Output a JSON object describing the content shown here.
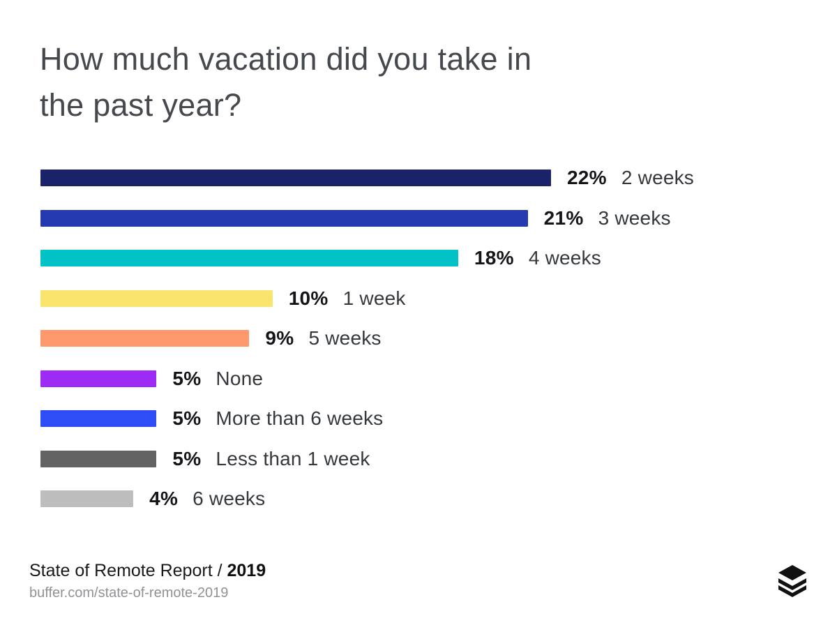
{
  "title": {
    "line1": "How much vacation did you take in",
    "line2": "the past year?"
  },
  "chart_data": {
    "type": "bar",
    "orientation": "horizontal",
    "title": "How much vacation did you take in the past year?",
    "unit": "percent",
    "categories": [
      "2 weeks",
      "3 weeks",
      "4 weeks",
      "1 week",
      "5 weeks",
      "None",
      "More than 6 weeks",
      "Less than 1 week",
      "6 weeks"
    ],
    "values": [
      22,
      21,
      18,
      10,
      9,
      5,
      5,
      5,
      4
    ],
    "value_labels": [
      "22%",
      "21%",
      "18%",
      "10%",
      "9%",
      "5%",
      "5%",
      "5%",
      "4%"
    ],
    "bar_colors": [
      "#1a2369",
      "#2539b0",
      "#00c2c7",
      "#fbe46e",
      "#fd976c",
      "#9d2bf5",
      "#2f4df7",
      "#636363",
      "#bdbdbd"
    ],
    "xlim": [
      0,
      22
    ],
    "grid": false,
    "legend": false,
    "value_label_position": "right-of-bar"
  },
  "footer": {
    "report_label": "State of Remote Report / ",
    "report_year": "2019",
    "url": "buffer.com/state-of-remote-2019"
  },
  "branding": {
    "logo": "buffer-logo",
    "logo_color": "#111111"
  }
}
